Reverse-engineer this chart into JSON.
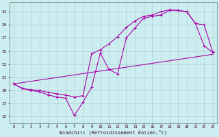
{
  "xlabel": "Windchill (Refroidissement éolien,°C)",
  "bg_color": "#cceef0",
  "grid_color": "#aacccc",
  "line_color": "#aa00aa",
  "y_ticks": [
    15,
    17,
    19,
    21,
    23,
    25,
    27,
    29,
    31
  ],
  "xlim": [
    -0.5,
    23.5
  ],
  "ylim": [
    14.0,
    32.5
  ],
  "curve1_x": [
    0,
    1,
    2,
    3,
    4,
    5,
    6,
    7,
    8,
    9,
    10,
    11,
    12,
    13,
    14,
    15,
    16,
    17,
    18,
    19,
    20,
    21,
    22,
    23
  ],
  "curve1_y": [
    20.0,
    19.3,
    19.0,
    18.8,
    18.3,
    18.0,
    17.8,
    15.2,
    17.2,
    19.5,
    24.7,
    22.2,
    21.5,
    27.0,
    28.5,
    30.0,
    30.3,
    30.5,
    31.2,
    31.2,
    31.0,
    29.2,
    25.8,
    24.8
  ],
  "curve2_x": [
    0,
    1,
    2,
    3,
    4,
    5,
    6,
    7,
    8,
    9,
    10,
    11,
    12,
    13,
    14,
    15,
    16,
    17,
    18,
    19,
    20,
    21,
    22,
    23
  ],
  "curve2_y": [
    20.0,
    19.3,
    19.1,
    19.0,
    18.7,
    18.5,
    18.3,
    18.0,
    18.2,
    24.6,
    25.2,
    26.1,
    27.2,
    28.6,
    29.6,
    30.3,
    30.5,
    31.0,
    31.3,
    31.2,
    31.0,
    29.2,
    29.0,
    24.8
  ],
  "curve3_x": [
    0,
    23
  ],
  "curve3_y": [
    20.0,
    24.5
  ]
}
